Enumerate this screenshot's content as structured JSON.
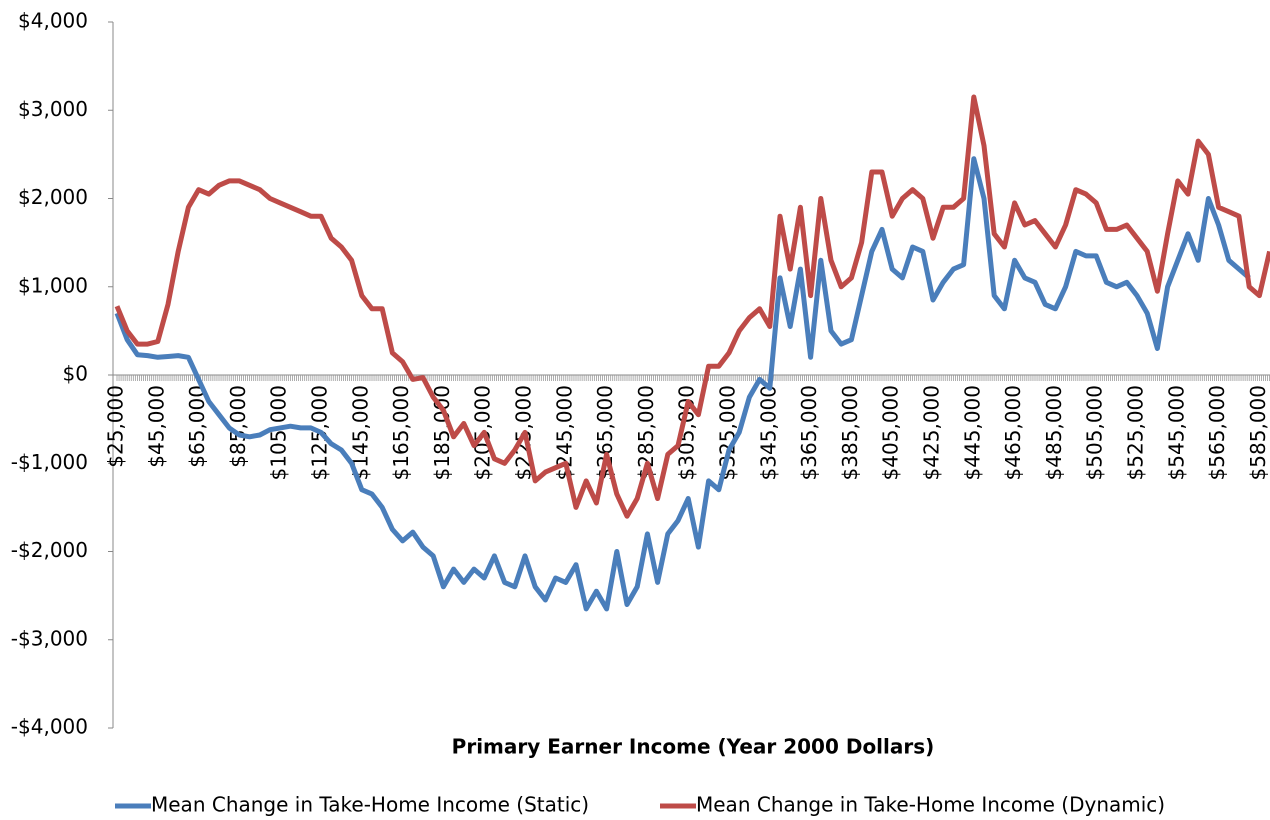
{
  "chart_data": {
    "type": "line",
    "x_label": "Primary Earner Income (Year 2000 Dollars)",
    "categories": [
      "$25,000",
      null,
      null,
      null,
      "$45,000",
      null,
      null,
      null,
      "$65,000",
      null,
      null,
      null,
      "$85,000",
      null,
      null,
      null,
      "$105,000",
      null,
      null,
      null,
      "$125,000",
      null,
      null,
      null,
      "$145,000",
      null,
      null,
      null,
      "$165,000",
      null,
      null,
      null,
      "$185,000",
      null,
      null,
      null,
      "$205,000",
      null,
      null,
      null,
      "$225,000",
      null,
      null,
      null,
      "$245,000",
      null,
      null,
      null,
      "$265,000",
      null,
      null,
      null,
      "$285,000",
      null,
      null,
      null,
      "$305,000",
      null,
      null,
      null,
      "$325,000",
      null,
      null,
      null,
      "$345,000",
      null,
      null,
      null,
      "$365,000",
      null,
      null,
      null,
      "$385,000",
      null,
      null,
      null,
      "$405,000",
      null,
      null,
      null,
      "$425,000",
      null,
      null,
      null,
      "$445,000",
      null,
      null,
      null,
      "$465,000",
      null,
      null,
      null,
      "$485,000",
      null,
      null,
      null,
      "$505,000",
      null,
      null,
      null,
      "$525,000",
      null,
      null,
      null,
      "$545,000",
      null,
      null,
      null,
      "$565,000",
      null,
      null,
      null,
      "$585,000",
      null
    ],
    "series": [
      {
        "name": "Mean Change in Take-Home Income (Static)",
        "color": "#4a7ebb",
        "values": [
          700,
          400,
          230,
          220,
          200,
          210,
          220,
          200,
          -50,
          -300,
          -450,
          -600,
          -680,
          -700,
          -680,
          -620,
          -600,
          -580,
          -600,
          -600,
          -650,
          -780,
          -850,
          -1000,
          -1300,
          -1350,
          -1500,
          -1750,
          -1880,
          -1780,
          -1950,
          -2050,
          -2400,
          -2200,
          -2350,
          -2200,
          -2300,
          -2050,
          -2350,
          -2400,
          -2050,
          -2400,
          -2550,
          -2300,
          -2350,
          -2150,
          -2650,
          -2450,
          -2650,
          -2000,
          -2600,
          -2400,
          -1800,
          -2350,
          -1800,
          -1650,
          -1400,
          -1950,
          -1200,
          -1300,
          -850,
          -650,
          -250,
          -50,
          -150,
          1100,
          550,
          1200,
          200,
          1300,
          500,
          350,
          400,
          900,
          1400,
          1650,
          1200,
          1100,
          1450,
          1400,
          850,
          1050,
          1200,
          1250,
          2450,
          2000,
          900,
          750,
          1300,
          1100,
          1050,
          800,
          750,
          1000,
          1400,
          1350,
          1350,
          1050,
          1000,
          1050,
          900,
          700,
          300,
          1000,
          1300,
          1600,
          1300,
          2000,
          1700,
          1300,
          1200,
          1100,
          null,
          null
        ]
      },
      {
        "name": "Mean Change in Take-Home Income (Dynamic)",
        "color": "#be4b48",
        "values": [
          780,
          500,
          350,
          350,
          380,
          800,
          1400,
          1900,
          2100,
          2050,
          2150,
          2200,
          2200,
          2150,
          2100,
          2000,
          1950,
          1900,
          1850,
          1800,
          1800,
          1550,
          1450,
          1300,
          900,
          750,
          750,
          250,
          150,
          -50,
          -30,
          -250,
          -400,
          -700,
          -550,
          -800,
          -650,
          -950,
          -1000,
          -850,
          -650,
          -1200,
          -1100,
          -1050,
          -1000,
          -1500,
          -1200,
          -1450,
          -900,
          -1350,
          -1600,
          -1400,
          -1000,
          -1400,
          -900,
          -800,
          -300,
          -450,
          100,
          100,
          250,
          500,
          650,
          750,
          550,
          1800,
          1200,
          1900,
          900,
          2000,
          1300,
          1000,
          1100,
          1500,
          2300,
          2300,
          1800,
          2000,
          2100,
          2000,
          1550,
          1900,
          1900,
          2000,
          3150,
          2600,
          1600,
          1450,
          1950,
          1700,
          1750,
          1600,
          1450,
          1700,
          2100,
          2050,
          1950,
          1650,
          1650,
          1700,
          1550,
          1400,
          950,
          1600,
          2200,
          2050,
          2650,
          2500,
          1900,
          1850,
          1800,
          1000,
          900,
          1400
        ]
      }
    ],
    "ylim": [
      -4000,
      4000
    ],
    "yticks": [
      {
        "value": -4000,
        "label": "-$4,000"
      },
      {
        "value": -3000,
        "label": "-$3,000"
      },
      {
        "value": -2000,
        "label": "-$2,000"
      },
      {
        "value": -1000,
        "label": "-$1,000"
      },
      {
        "value": 0,
        "label": "$0"
      },
      {
        "value": 1000,
        "label": "$1,000"
      },
      {
        "value": 2000,
        "label": "$2,000"
      },
      {
        "value": 3000,
        "label": "$3,000"
      },
      {
        "value": 4000,
        "label": "$4,000"
      }
    ],
    "legend": "bottom"
  }
}
